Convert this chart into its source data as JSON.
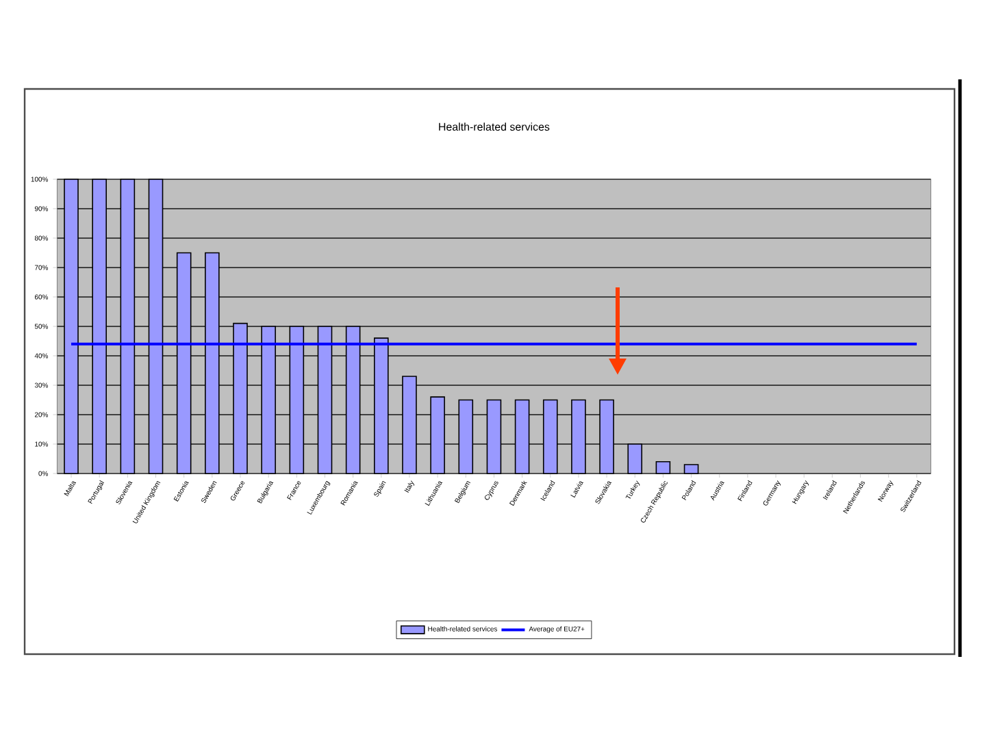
{
  "chart_data": {
    "type": "bar",
    "title": "Health-related services",
    "categories": [
      "Malta",
      "Portugal",
      "Slovenia",
      "United Kingdom",
      "Estonia",
      "Sweden",
      "Greece",
      "Bulgaria",
      "France",
      "Luxembourg",
      "Romania",
      "Spain",
      "Italy",
      "Lithuania",
      "Belgium",
      "Cyprus",
      "Denmark",
      "Iceland",
      "Latvia",
      "Slovakia",
      "Turkey",
      "Czech Republic",
      "Poland",
      "Austria",
      "Finland",
      "Germany",
      "Hungary",
      "Ireland",
      "Netherlands",
      "Norway",
      "Switzerland"
    ],
    "series": [
      {
        "name": "Health-related services",
        "color": "#9999ff",
        "values": [
          100,
          100,
          100,
          100,
          75,
          75,
          51,
          50,
          50,
          50,
          50,
          46,
          33,
          26,
          25,
          25,
          25,
          25,
          25,
          25,
          10,
          4,
          3,
          0,
          0,
          0,
          0,
          0,
          0,
          0,
          0
        ]
      },
      {
        "name": "Average of EU27+",
        "type": "line",
        "color": "#0000ff",
        "values": [
          44,
          44,
          44,
          44,
          44,
          44,
          44,
          44,
          44,
          44,
          44,
          44,
          44,
          44,
          44,
          44,
          44,
          44,
          44,
          44,
          44,
          44,
          44,
          44,
          44,
          44,
          44,
          44,
          44,
          44,
          44
        ]
      }
    ],
    "ylim": [
      0,
      100
    ],
    "yticks": [
      {
        "value": 0,
        "label": "0%"
      },
      {
        "value": 10,
        "label": "10%"
      },
      {
        "value": 20,
        "label": "20%"
      },
      {
        "value": 30,
        "label": "30%"
      },
      {
        "value": 40,
        "label": "40%"
      },
      {
        "value": 50,
        "label": "50%"
      },
      {
        "value": 60,
        "label": "60%"
      },
      {
        "value": 70,
        "label": "70%"
      },
      {
        "value": 80,
        "label": "80%"
      },
      {
        "value": 90,
        "label": "90%"
      },
      {
        "value": 100,
        "label": "100%"
      }
    ],
    "grid": "y",
    "legend": "bottom"
  }
}
